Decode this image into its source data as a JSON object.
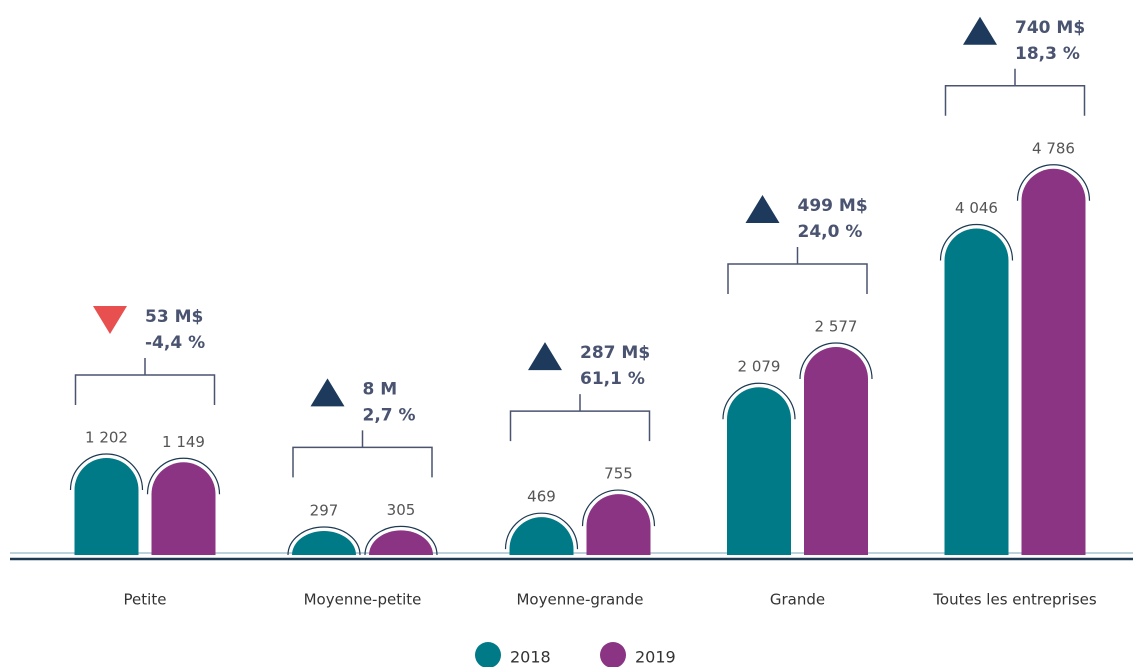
{
  "chart_data": {
    "type": "bar",
    "categories": [
      "Petite",
      "Moyenne-petite",
      "Moyenne-grande",
      "Grande",
      "Toutes les entreprises"
    ],
    "series": [
      {
        "name": "2018",
        "color": "#007a87",
        "values": [
          1202,
          297,
          469,
          2079,
          4046
        ],
        "value_labels": [
          "1 202",
          "297",
          "469",
          "2 079",
          "4 046"
        ]
      },
      {
        "name": "2019",
        "color": "#8b3483",
        "values": [
          1149,
          305,
          755,
          2577,
          4786
        ],
        "value_labels": [
          "1 149",
          "305",
          "755",
          "2 577",
          "4 786"
        ]
      }
    ],
    "annotations": [
      {
        "amount": "53 M$",
        "change": "-4,4 %"
      },
      {
        "amount": "8 M",
        "change": "2,7 %"
      },
      {
        "amount": "287 M$",
        "change": "61,1 %"
      },
      {
        "amount": "499 M$",
        "change": "24,0 %"
      },
      {
        "amount": "740 M$",
        "change": "18,3 %"
      }
    ],
    "ylim": [
      0,
      5000
    ]
  }
}
